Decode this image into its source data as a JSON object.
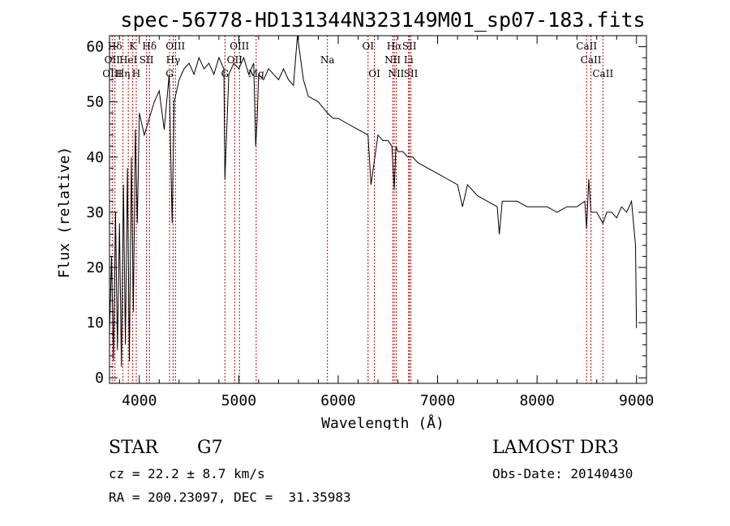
{
  "chart_data": {
    "type": "line",
    "title": "spec-56778-HD131344N323149M01_sp07-183.fits",
    "xlabel": "Wavelength (Å)",
    "ylabel": "Flux (relative)",
    "xlim": [
      3700,
      9100
    ],
    "ylim": [
      -1,
      62
    ],
    "xticks": [
      4000,
      5000,
      6000,
      7000,
      8000,
      9000
    ],
    "yticks": [
      0,
      10,
      20,
      30,
      40,
      50,
      60
    ],
    "grid": false,
    "series": [
      {
        "name": "spectrum",
        "x": [
          3700,
          3720,
          3740,
          3760,
          3780,
          3800,
          3820,
          3840,
          3860,
          3880,
          3900,
          3920,
          3940,
          3960,
          3980,
          4000,
          4050,
          4100,
          4150,
          4200,
          4250,
          4300,
          4330,
          4350,
          4400,
          4450,
          4500,
          4550,
          4600,
          4650,
          4700,
          4750,
          4800,
          4850,
          4861,
          4900,
          4950,
          5000,
          5050,
          5100,
          5150,
          5170,
          5183,
          5200,
          5250,
          5300,
          5350,
          5400,
          5450,
          5500,
          5550,
          5590,
          5650,
          5700,
          5800,
          5890,
          5950,
          6000,
          6100,
          6200,
          6300,
          6330,
          6400,
          6450,
          6500,
          6540,
          6563,
          6580,
          6600,
          6650,
          6700,
          6750,
          6800,
          6900,
          7000,
          7100,
          7200,
          7250,
          7300,
          7400,
          7500,
          7600,
          7620,
          7650,
          7700,
          7800,
          7900,
          8000,
          8100,
          8200,
          8300,
          8400,
          8480,
          8498,
          8520,
          8542,
          8560,
          8600,
          8662,
          8700,
          8750,
          8800,
          8850,
          8900,
          8950,
          8990,
          9000
        ],
        "y": [
          8,
          22,
          3,
          30,
          5,
          28,
          2,
          35,
          6,
          38,
          3,
          40,
          12,
          45,
          28,
          48,
          44,
          47,
          50,
          52,
          45,
          55,
          28,
          50,
          54,
          56,
          57,
          55,
          58,
          56,
          57,
          55,
          58,
          56,
          36,
          55,
          57,
          56,
          58,
          55,
          57,
          42,
          46,
          55,
          54,
          56,
          55,
          54,
          56,
          54,
          53,
          62,
          54,
          51,
          50,
          48,
          47,
          47,
          46,
          45,
          44,
          35,
          44,
          43,
          43,
          42,
          34,
          42,
          41,
          41,
          40,
          40,
          39,
          38,
          37,
          36,
          35,
          31,
          35,
          33,
          32,
          31,
          26,
          32,
          32,
          32,
          31,
          31,
          31,
          30,
          31,
          31,
          32,
          27,
          36,
          30,
          30,
          30,
          28,
          30,
          30,
          29,
          31,
          30,
          32,
          24,
          9
        ]
      }
    ],
    "lines_top": [
      {
        "label": "Hδ",
        "x": 3755
      },
      {
        "label": "K",
        "x": 3934
      },
      {
        "label": "Hδ",
        "x": 4102
      },
      {
        "label": "OIII",
        "x": 4363
      },
      {
        "label": "OIII",
        "x": 5007
      },
      {
        "label": "OI",
        "x": 6300
      },
      {
        "label": "Hα",
        "x": 6563
      },
      {
        "label": "SII",
        "x": 6716
      },
      {
        "label": "CaII",
        "x": 8498
      }
    ],
    "lines_mid": [
      {
        "label": "OII",
        "x": 3727
      },
      {
        "label": "HeI",
        "x": 3889
      },
      {
        "label": "SII",
        "x": 4072
      },
      {
        "label": "Hγ",
        "x": 4340
      },
      {
        "label": "OII",
        "x": 4959
      },
      {
        "label": "Na",
        "x": 5892
      },
      {
        "label": "NII",
        "x": 6548
      },
      {
        "label": "Li",
        "x": 6708
      },
      {
        "label": "CaII",
        "x": 8542
      }
    ],
    "lines_low": [
      {
        "label": "OIII",
        "x": 3727
      },
      {
        "label": "Hη",
        "x": 3835
      },
      {
        "label": "H",
        "x": 3969
      },
      {
        "label": "G",
        "x": 4304
      },
      {
        "label": "G",
        "x": 4861
      },
      {
        "label": "Mg",
        "x": 5175
      },
      {
        "label": "OI",
        "x": 6364
      },
      {
        "label": "NII",
        "x": 6583
      },
      {
        "label": "SII",
        "x": 6731
      },
      {
        "label": "CaII",
        "x": 8662
      }
    ]
  },
  "info": {
    "object_class": "STAR",
    "subclass": "G7",
    "survey": "LAMOST DR3",
    "cz_line": "cz = 22.2 ± 8.7 km/s",
    "obs_date": "Obs-Date: 20140430",
    "coords": "RA = 200.23097, DEC =  31.35983"
  },
  "colors": {
    "spectrum": "#000000",
    "line_marker": "#c00000"
  }
}
